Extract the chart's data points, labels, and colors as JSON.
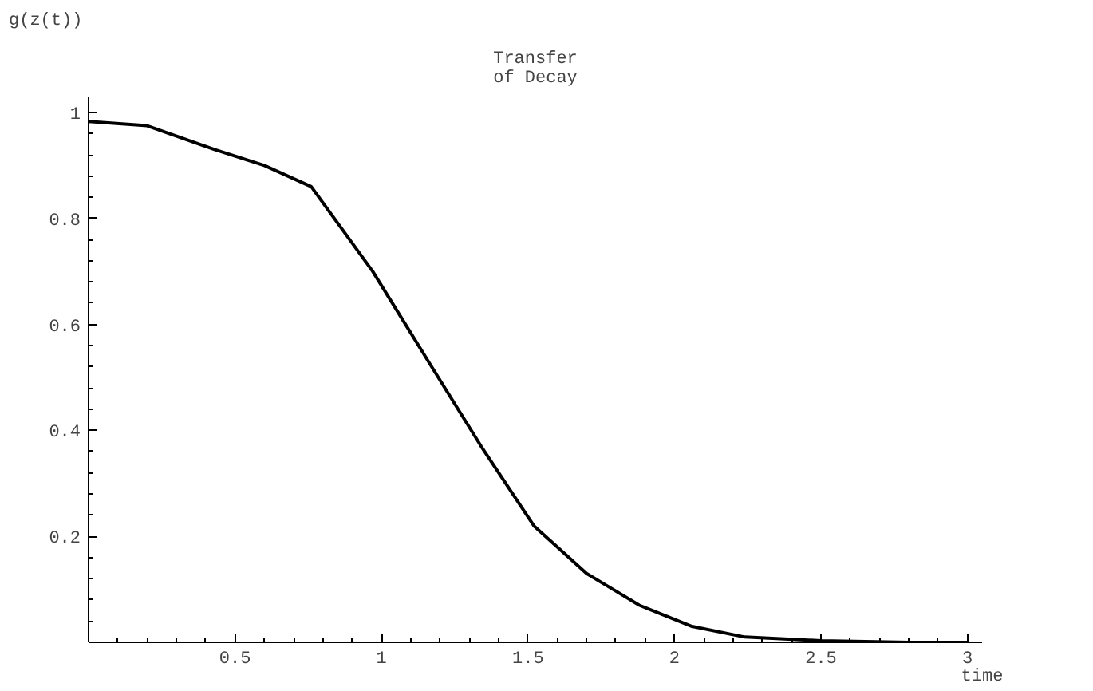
{
  "chart_data": {
    "type": "line",
    "title": "Transfer\nof Decay",
    "xlabel": "time",
    "ylabel": "g(z(t))",
    "x": [
      0,
      0.2,
      0.43,
      0.6,
      0.76,
      0.97,
      1.16,
      1.34,
      1.52,
      1.7,
      1.88,
      2.06,
      2.24,
      2.5,
      2.8,
      3.0
    ],
    "series": [
      {
        "color": "#000000",
        "values": [
          0.983,
          0.975,
          0.93,
          0.9,
          0.86,
          0.7,
          0.53,
          0.37,
          0.22,
          0.13,
          0.07,
          0.03,
          0.01,
          0.003,
          0.0,
          0.0
        ]
      }
    ],
    "xlim": [
      0,
      3.05
    ],
    "ylim": [
      0,
      1.03
    ],
    "xticks": [
      0.5,
      1,
      1.5,
      2,
      2.5,
      3
    ],
    "yticks": [
      0.2,
      0.4,
      0.6,
      0.8,
      1
    ],
    "grid": false,
    "marker": "none",
    "line_style": "solid"
  }
}
